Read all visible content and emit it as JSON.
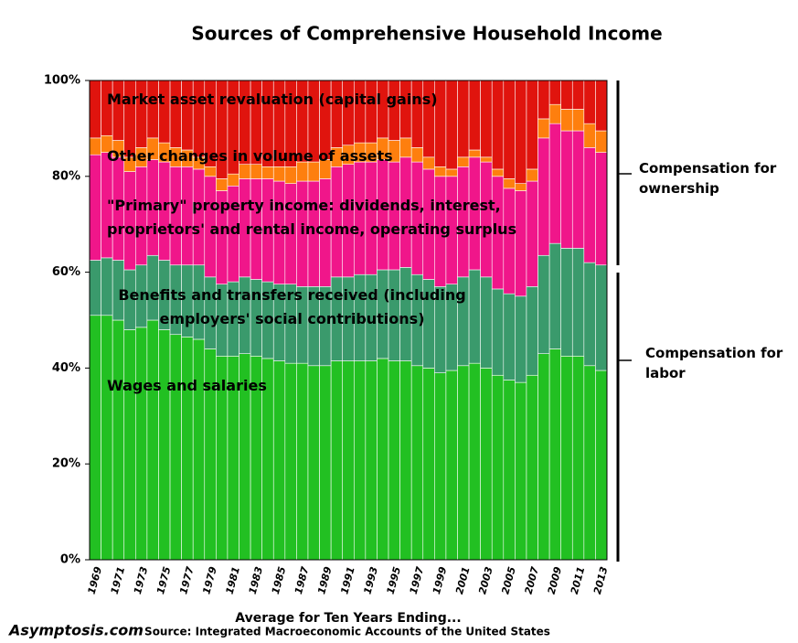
{
  "chart_data": {
    "type": "stacked_bar",
    "title": "Sources of Comprehensive Household Income",
    "x_label": "Average for Ten Years Ending...",
    "source": "Source: Integrated Macroeconomic Accounts of the United States",
    "credit": "Asymptosis.com",
    "annotations": [
      "Compensation for ownership",
      "Compensation for labor"
    ],
    "categories": [
      "1969",
      null,
      "1971",
      null,
      "1973",
      null,
      "1975",
      null,
      "1977",
      null,
      "1979",
      null,
      "1981",
      null,
      "1983",
      null,
      "1985",
      null,
      "1987",
      null,
      "1989",
      null,
      "1991",
      null,
      "1993",
      null,
      "1995",
      null,
      "1997",
      null,
      "1999",
      null,
      "2001",
      null,
      "2003",
      null,
      "2005",
      null,
      "2007",
      null,
      "2009",
      null,
      "2011",
      null,
      "2013"
    ],
    "series": [
      {
        "name": "Wages and salaries",
        "color": "#22c022",
        "values": [
          51,
          51,
          50,
          48,
          48.5,
          50,
          48,
          47,
          46.5,
          46,
          44,
          42.5,
          42.5,
          43,
          42.5,
          42,
          41.5,
          41,
          41,
          40.5,
          40.5,
          41.5,
          41.5,
          41.5,
          41.5,
          42,
          41.5,
          41.5,
          40.5,
          40,
          39,
          39.5,
          40.5,
          41,
          40,
          38.5,
          37.5,
          37,
          38.5,
          43,
          44,
          42.5,
          42.5,
          40.5,
          39.5
        ]
      },
      {
        "name": "Benefits and transfers received (including employers' social contributions)",
        "color": "#3a9a6c",
        "values": [
          11.5,
          12,
          12.5,
          12.5,
          13,
          13.5,
          14.5,
          14.5,
          15,
          15.5,
          15,
          15,
          15.5,
          16,
          16,
          16,
          16,
          16.5,
          16,
          16.5,
          16.5,
          17.5,
          17.5,
          18,
          18,
          18.5,
          19,
          19.5,
          19,
          18.5,
          18,
          18,
          18.5,
          19.5,
          19,
          18,
          18,
          18,
          18.5,
          20.5,
          22,
          22.5,
          22.5,
          21.5,
          22
        ]
      },
      {
        "name": "\"Primary\" property income: dividends, interest, proprietors' and rental income, operating surplus",
        "color": "#f0168a",
        "values": [
          22,
          22,
          21.5,
          20.5,
          20.5,
          20,
          20.5,
          20.5,
          20.5,
          20,
          21,
          19.5,
          20,
          20.5,
          21,
          21.5,
          21.5,
          21,
          22,
          22,
          22.5,
          23,
          23.5,
          23.5,
          23.5,
          23,
          22.5,
          23,
          23.5,
          23,
          23,
          22.5,
          23,
          23.5,
          24,
          23.5,
          22,
          22,
          22,
          24.5,
          25,
          24.5,
          24.5,
          24,
          23.5
        ]
      },
      {
        "name": "Other changes in volume of assets",
        "color": "#fe7f0e",
        "values": [
          3.5,
          3.5,
          3.5,
          3,
          4,
          4.5,
          4,
          4,
          3.5,
          2.5,
          2,
          2.5,
          2.5,
          3,
          3,
          2.5,
          3,
          3.5,
          4,
          4,
          4,
          4,
          4,
          4,
          4,
          4.5,
          4.5,
          4,
          3,
          2.5,
          2,
          1.5,
          2,
          1.5,
          1,
          1.5,
          2,
          1.5,
          2.5,
          4,
          4,
          4.5,
          4.5,
          5,
          4.5
        ]
      },
      {
        "name": "Market asset revaluation (capital gains)",
        "color": "#e0140e",
        "values": [
          12,
          11.5,
          12.5,
          16,
          14,
          12,
          13,
          14,
          14.5,
          16,
          18,
          20.5,
          19.5,
          17.5,
          17.5,
          18,
          18,
          18,
          17,
          17,
          16.5,
          14,
          13.5,
          13,
          13,
          12,
          12.5,
          12,
          14,
          16,
          18,
          18.5,
          16,
          14.5,
          16,
          18.5,
          20.5,
          21.5,
          18.5,
          8,
          5,
          6,
          6,
          9,
          10.5
        ]
      }
    ],
    "ylim": [
      0,
      100
    ],
    "yticks": [
      {
        "value": 0,
        "label": "0%"
      },
      {
        "value": 20,
        "label": "20%"
      },
      {
        "value": 40,
        "label": "40%"
      },
      {
        "value": 60,
        "label": "60%"
      },
      {
        "value": 80,
        "label": "80%"
      },
      {
        "value": 100,
        "label": "100%"
      }
    ],
    "grid": false
  }
}
